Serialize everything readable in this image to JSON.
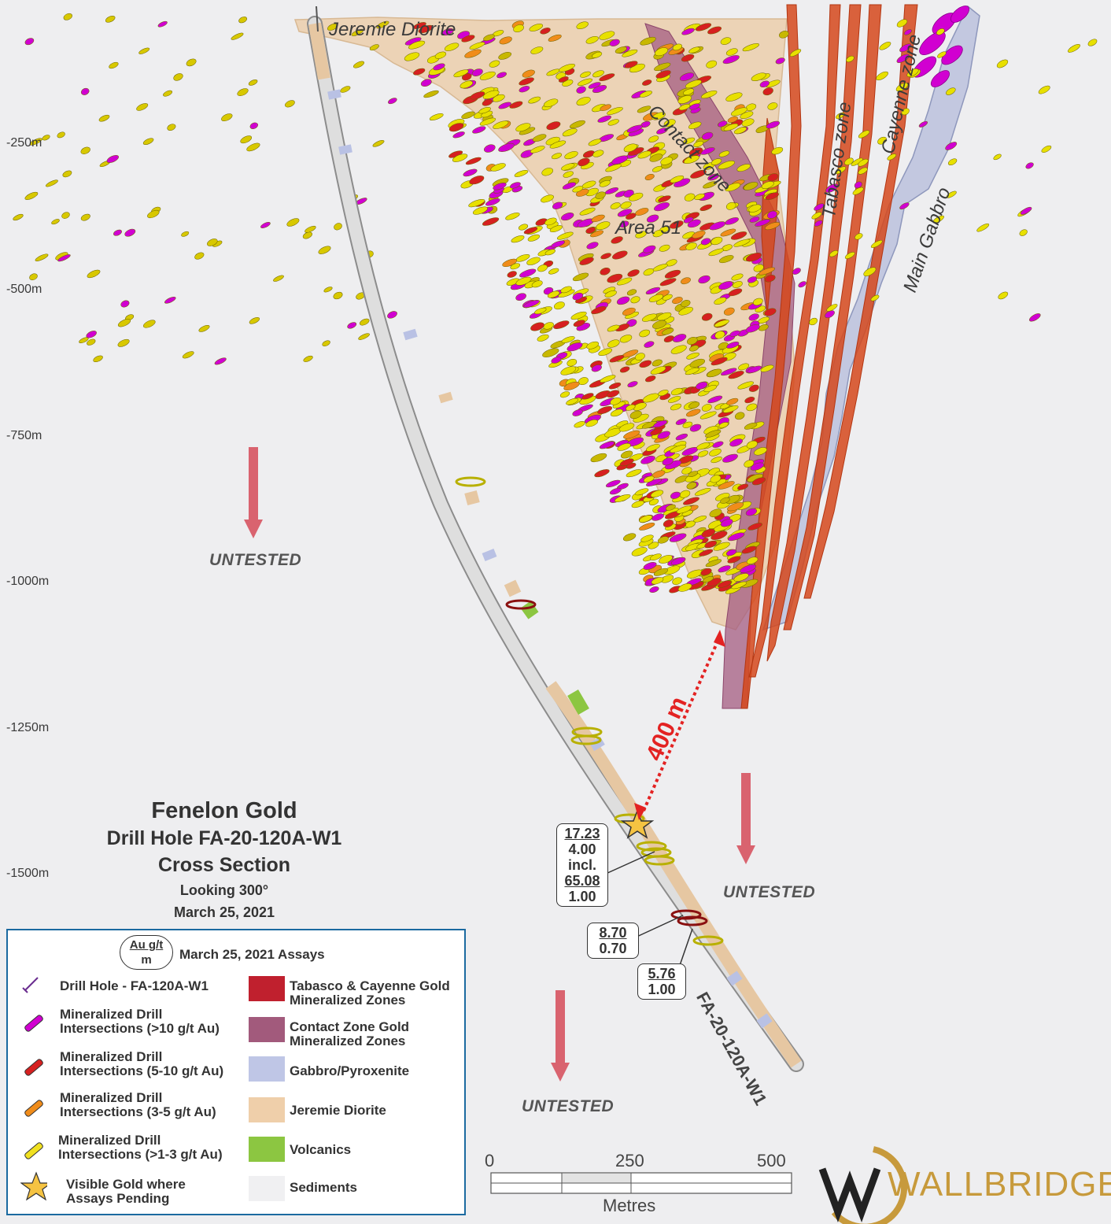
{
  "depth_ticks": [
    "-250m",
    "-500m",
    "-750m",
    "-1000m",
    "-1250m",
    "-1500m"
  ],
  "zone_labels": {
    "jeremie_diorite": "Jeremie Diorite",
    "contact_zone": "Contact zone",
    "area_51": "Area 51",
    "tabasco_zone": "Tabasco zone",
    "cayenne_zone": "Cayenne zone",
    "main_gabbro": "Main Gabbro"
  },
  "untested_label": "UNTESTED",
  "distance_label": "400 m",
  "drill_hole_label": "FA-20-120A-W1",
  "title": {
    "line1": "Fenelon Gold",
    "line2": "Drill Hole FA-20-120A-W1",
    "line3": "Cross Section",
    "line4": "Looking 300°",
    "line5": "March 25, 2021"
  },
  "assays": [
    {
      "au": "17.23",
      "m": "4.00",
      "incl": "incl.",
      "au2": "65.08",
      "m2": "1.00"
    },
    {
      "au": "8.70",
      "m": "0.70"
    },
    {
      "au": "5.76",
      "m": "1.00"
    }
  ],
  "legend": {
    "unit_top": "Au g/t",
    "unit_bottom": "m",
    "header": "March 25, 2021 Assays",
    "left": [
      {
        "l1": "Drill Hole - FA-120A-W1",
        "l2": "",
        "color": "#6a2d8f"
      },
      {
        "l1": "Mineralized Drill",
        "l2": "Intersections (>10 g/t Au)",
        "color": "#d100d1"
      },
      {
        "l1": "Mineralized Drill",
        "l2": "Intersections (5-10 g/t Au)",
        "color": "#d62020"
      },
      {
        "l1": "Mineralized Drill",
        "l2": "Intersections (3-5 g/t Au)",
        "color": "#f08c1a"
      },
      {
        "l1": "Mineralized Drill",
        "l2": "Intersections (>1-3 g/t Au)",
        "color": "#f0e020"
      },
      {
        "l1": "Visible Gold where",
        "l2": "Assays Pending",
        "color": "#f5c342"
      }
    ],
    "right": [
      {
        "l1": "Tabasco & Cayenne Gold",
        "l2": "Mineralized Zones",
        "color": "#c0202e"
      },
      {
        "l1": "Contact Zone Gold",
        "l2": "Mineralized Zones",
        "color": "#a25a7c"
      },
      {
        "l1": "Gabbro/Pyroxenite",
        "l2": "",
        "color": "#bfc6e6"
      },
      {
        "l1": "Jeremie Diorite",
        "l2": "",
        "color": "#efcfaa"
      },
      {
        "l1": "Volcanics",
        "l2": "",
        "color": "#8cc641"
      },
      {
        "l1": "Sediments",
        "l2": "",
        "color": "#f0f0f2"
      }
    ]
  },
  "scale": {
    "ticks": [
      "0",
      "250",
      "500"
    ],
    "unit": "Metres"
  },
  "logo": "WALLBRIDGE"
}
